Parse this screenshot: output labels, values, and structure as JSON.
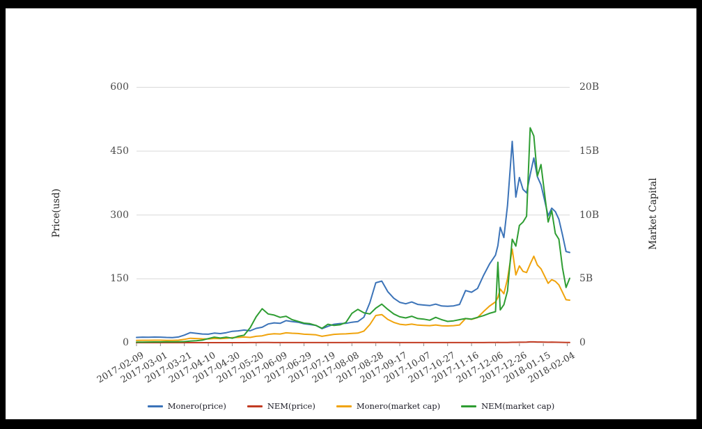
{
  "figure": {
    "background_color": "#ffffff",
    "frame_color": "#000000",
    "gridline_color": "#d8d8d8",
    "tick_mark_color": "#8a8a8a"
  },
  "chart_data": {
    "type": "line",
    "title": "",
    "grid": "horizontal",
    "legend_position": "bottom-center",
    "left_axis": {
      "title": "Price(usd)",
      "range": [
        0,
        600
      ],
      "tick_values": [
        600,
        450,
        300,
        150,
        0
      ],
      "tick_labels": [
        "600",
        "450",
        "300",
        "150",
        "0"
      ]
    },
    "right_axis": {
      "title": "Market Capital",
      "range": [
        0,
        20
      ],
      "tick_values": [
        20,
        15,
        10,
        5,
        0
      ],
      "tick_labels": [
        "20B",
        "15B",
        "10B",
        "5B",
        "0"
      ]
    },
    "x_axis": {
      "tick_labels": [
        "2017-02-09",
        "2017-03-01",
        "2017-03-21",
        "2017-04-10",
        "2017-04-30",
        "2017-05-20",
        "2017-06-09",
        "2017-06-29",
        "2017-07-19",
        "2017-08-08",
        "2017-08-28",
        "2017-09-17",
        "2017-10-07",
        "2017-10-27",
        "2017-11-16",
        "2017-12-06",
        "2017-12-26",
        "2018-01-15",
        "2018-02-04"
      ],
      "rotation_deg": -30
    },
    "dates": [
      "2017-02-09",
      "2017-02-14",
      "2017-02-19",
      "2017-02-24",
      "2017-03-01",
      "2017-03-06",
      "2017-03-11",
      "2017-03-16",
      "2017-03-21",
      "2017-03-26",
      "2017-03-31",
      "2017-04-05",
      "2017-04-10",
      "2017-04-15",
      "2017-04-20",
      "2017-04-25",
      "2017-04-30",
      "2017-05-05",
      "2017-05-10",
      "2017-05-15",
      "2017-05-20",
      "2017-05-25",
      "2017-05-30",
      "2017-06-04",
      "2017-06-09",
      "2017-06-14",
      "2017-06-19",
      "2017-06-24",
      "2017-06-29",
      "2017-07-04",
      "2017-07-09",
      "2017-07-14",
      "2017-07-19",
      "2017-07-24",
      "2017-07-29",
      "2017-08-03",
      "2017-08-08",
      "2017-08-13",
      "2017-08-18",
      "2017-08-23",
      "2017-08-28",
      "2017-09-02",
      "2017-09-07",
      "2017-09-12",
      "2017-09-17",
      "2017-09-22",
      "2017-09-27",
      "2017-10-02",
      "2017-10-07",
      "2017-10-12",
      "2017-10-17",
      "2017-10-22",
      "2017-10-27",
      "2017-11-01",
      "2017-11-06",
      "2017-11-11",
      "2017-11-16",
      "2017-11-21",
      "2017-11-26",
      "2017-12-01",
      "2017-12-06",
      "2017-12-08",
      "2017-12-10",
      "2017-12-13",
      "2017-12-16",
      "2017-12-20",
      "2017-12-23",
      "2017-12-26",
      "2017-12-29",
      "2018-01-01",
      "2018-01-04",
      "2018-01-07",
      "2018-01-10",
      "2018-01-13",
      "2018-01-16",
      "2018-01-19",
      "2018-01-22",
      "2018-01-25",
      "2018-01-28",
      "2018-01-31",
      "2018-02-03",
      "2018-02-06"
    ],
    "series": [
      {
        "name": "Monero(price)",
        "axis": "left",
        "color": "#3b73b8",
        "values": [
          12.2,
          12.9,
          12.6,
          13.1,
          13.0,
          12.3,
          11.9,
          13.2,
          17.6,
          23.6,
          22.0,
          20.3,
          19.8,
          22.4,
          21.2,
          23.4,
          26.6,
          27.6,
          29.7,
          27.8,
          33.5,
          36.1,
          43.8,
          46.5,
          45.4,
          51.7,
          49.6,
          47.9,
          44.3,
          42.5,
          40.6,
          32.9,
          38.3,
          43.2,
          44.9,
          45.4,
          47.9,
          49.6,
          59.8,
          94.1,
          140.7,
          144.6,
          119.8,
          104.4,
          94.7,
          91.4,
          95.5,
          89.9,
          88.3,
          87.0,
          90.5,
          86.2,
          85.5,
          86.4,
          89.9,
          122.4,
          118.5,
          127.4,
          158.0,
          184.8,
          205.8,
          228.0,
          271.0,
          247.0,
          322.0,
          473.0,
          342.0,
          388.0,
          360.0,
          352.0,
          395.0,
          434.0,
          390.0,
          371.0,
          335.0,
          298.0,
          316.0,
          308.0,
          290.0,
          253.0,
          214.0,
          212.0
        ]
      },
      {
        "name": "NEM(price)",
        "axis": "left",
        "color": "#c23b22",
        "values": [
          0.0042,
          0.005,
          0.0055,
          0.0058,
          0.0062,
          0.007,
          0.0067,
          0.0078,
          0.009,
          0.0135,
          0.0168,
          0.022,
          0.035,
          0.048,
          0.04,
          0.048,
          0.038,
          0.055,
          0.065,
          0.13,
          0.225,
          0.295,
          0.25,
          0.24,
          0.22,
          0.23,
          0.2,
          0.185,
          0.17,
          0.165,
          0.15,
          0.125,
          0.16,
          0.15,
          0.155,
          0.175,
          0.255,
          0.29,
          0.26,
          0.25,
          0.3,
          0.335,
          0.29,
          0.25,
          0.225,
          0.215,
          0.23,
          0.21,
          0.205,
          0.195,
          0.22,
          0.2,
          0.185,
          0.19,
          0.2,
          0.21,
          0.205,
          0.22,
          0.235,
          0.255,
          0.27,
          0.7,
          0.285,
          0.33,
          0.45,
          0.9,
          0.84,
          1.02,
          1.05,
          1.1,
          1.87,
          1.8,
          1.45,
          1.55,
          1.3,
          1.05,
          1.15,
          0.95,
          0.9,
          0.65,
          0.48,
          0.56
        ]
      },
      {
        "name": "Monero(market cap)",
        "axis": "right",
        "color": "#f0a30c",
        "values": [
          0.178,
          0.188,
          0.183,
          0.191,
          0.19,
          0.18,
          0.174,
          0.193,
          0.257,
          0.345,
          0.321,
          0.298,
          0.291,
          0.329,
          0.312,
          0.344,
          0.391,
          0.408,
          0.44,
          0.411,
          0.496,
          0.534,
          0.648,
          0.693,
          0.677,
          0.77,
          0.739,
          0.714,
          0.66,
          0.638,
          0.609,
          0.494,
          0.575,
          0.648,
          0.674,
          0.686,
          0.723,
          0.749,
          0.903,
          1.421,
          2.125,
          2.198,
          1.821,
          1.587,
          1.439,
          1.389,
          1.452,
          1.375,
          1.351,
          1.331,
          1.385,
          1.319,
          1.308,
          1.331,
          1.384,
          1.885,
          1.825,
          1.962,
          2.433,
          2.864,
          3.19,
          3.534,
          4.201,
          3.829,
          4.991,
          7.332,
          5.301,
          6.014,
          5.58,
          5.491,
          6.162,
          6.77,
          6.084,
          5.788,
          5.226,
          4.649,
          4.93,
          4.805,
          4.524,
          3.947,
          3.36,
          3.328
        ]
      },
      {
        "name": "NEM(market cap)",
        "axis": "right",
        "color": "#2e9d32",
        "values": [
          0.038,
          0.045,
          0.05,
          0.052,
          0.056,
          0.063,
          0.06,
          0.07,
          0.081,
          0.122,
          0.151,
          0.198,
          0.315,
          0.432,
          0.36,
          0.432,
          0.342,
          0.495,
          0.585,
          1.17,
          2.025,
          2.655,
          2.25,
          2.16,
          1.98,
          2.07,
          1.8,
          1.665,
          1.53,
          1.485,
          1.35,
          1.125,
          1.44,
          1.35,
          1.395,
          1.575,
          2.295,
          2.61,
          2.34,
          2.25,
          2.7,
          3.015,
          2.61,
          2.25,
          2.025,
          1.935,
          2.07,
          1.89,
          1.845,
          1.755,
          1.98,
          1.8,
          1.665,
          1.71,
          1.8,
          1.89,
          1.845,
          1.98,
          2.115,
          2.295,
          2.43,
          6.3,
          2.565,
          2.97,
          4.05,
          8.1,
          7.56,
          9.18,
          9.45,
          9.9,
          16.83,
          16.2,
          13.05,
          13.95,
          11.7,
          9.45,
          10.35,
          8.55,
          8.1,
          5.85,
          4.32,
          5.04
        ]
      }
    ]
  }
}
